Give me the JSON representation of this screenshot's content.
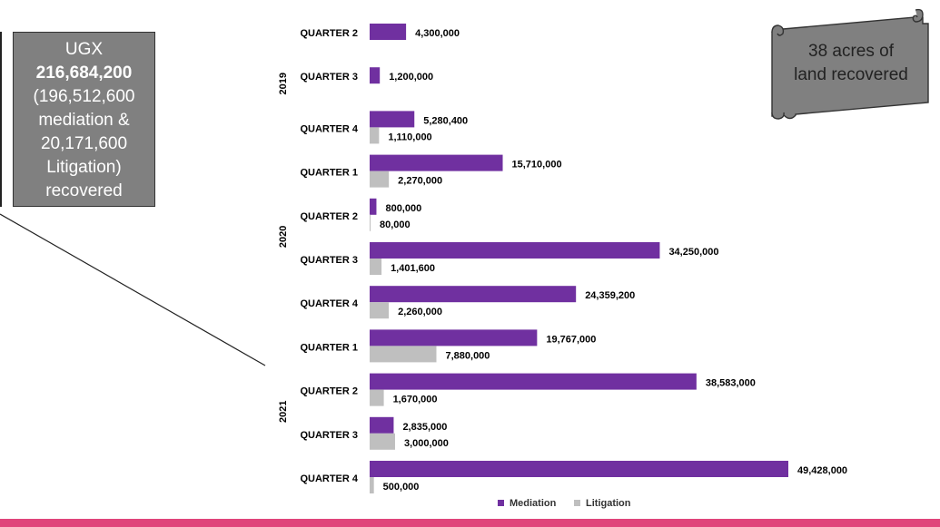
{
  "callout": {
    "currency": "UGX",
    "total": "216,684,200",
    "line1": "(196,512,600",
    "line2": "mediation &",
    "line3": "20,171,600",
    "line4": "Litigation)",
    "line5": "recovered"
  },
  "scroll_note": {
    "line1": "38 acres of",
    "line2": "land recovered"
  },
  "colors": {
    "mediation": "#7030a0",
    "litigation": "#bfbfbf",
    "accent_bar": "#e0457b",
    "callout_bg": "#808080",
    "scroll_bg": "#808080"
  },
  "chart_data": {
    "type": "bar",
    "orientation": "horizontal",
    "title": "",
    "xlabel": "",
    "ylabel": "",
    "grid": false,
    "legend_position": "bottom",
    "groups": [
      {
        "label": "2019",
        "categories": [
          "QUARTER 2",
          "QUARTER 3",
          "QUARTER 4"
        ]
      },
      {
        "label": "2020",
        "categories": [
          "QUARTER 1",
          "QUARTER 2",
          "QUARTER 3",
          "QUARTER 4"
        ]
      },
      {
        "label": "2021",
        "categories": [
          "QUARTER 1",
          "QUARTER 2",
          "QUARTER 3",
          "QUARTER 4"
        ]
      }
    ],
    "categories": [
      "QUARTER 2",
      "QUARTER 3",
      "QUARTER 4",
      "QUARTER 1",
      "QUARTER 2",
      "QUARTER 3",
      "QUARTER 4",
      "QUARTER 1",
      "QUARTER 2",
      "QUARTER 3",
      "QUARTER 4"
    ],
    "series": [
      {
        "name": "Mediation",
        "values": [
          4300000,
          1200000,
          5280400,
          15710000,
          800000,
          34250000,
          24359200,
          19767000,
          38583000,
          2835000,
          49428000
        ],
        "labels": [
          "4,300,000",
          "1,200,000",
          "5,280,400",
          "15,710,000",
          "800,000",
          "34,250,000",
          "24,359,200",
          "19,767,000",
          "38,583,000",
          "2,835,000",
          "49,428,000"
        ]
      },
      {
        "name": "Litigation",
        "values": [
          null,
          null,
          1110000,
          2270000,
          80000,
          1401600,
          2260000,
          7880000,
          1670000,
          3000000,
          500000
        ],
        "labels": [
          "",
          "",
          "1,110,000",
          "2,270,000",
          "80,000",
          "1,401,600",
          "2,260,000",
          "7,880,000",
          "1,670,000",
          "3,000,000",
          "500,000"
        ]
      }
    ],
    "xlim": [
      0,
      50000000
    ]
  }
}
